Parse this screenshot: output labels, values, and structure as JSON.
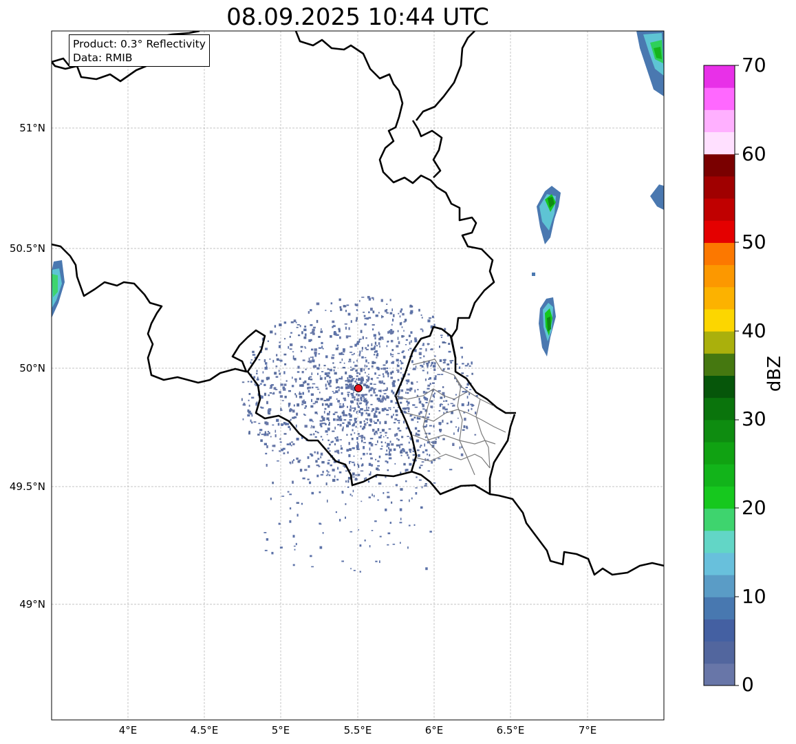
{
  "title": "08.09.2025 10:44 UTC",
  "info": {
    "product": "Product: 0.3° Reflectivity",
    "source": "Data: RMIB"
  },
  "map": {
    "lon_range": [
      3.5,
      7.5
    ],
    "lat_range": [
      48.55,
      51.4
    ],
    "lon_ticks": [
      "4°E",
      "4.5°E",
      "5°E",
      "5.5°E",
      "6°E",
      "6.5°E",
      "7°E"
    ],
    "lat_ticks": [
      "51°N",
      "50.5°N",
      "50°N",
      "49.5°N",
      "49°N"
    ],
    "gridlines": true,
    "radar_site": {
      "lon": 5.5,
      "lat": 49.91,
      "color": "#e8141c"
    }
  },
  "colorbar": {
    "label": "dBZ",
    "ticks": [
      "0",
      "10",
      "20",
      "30",
      "40",
      "50",
      "60",
      "70"
    ],
    "range": [
      0,
      70
    ],
    "colors": [
      "#6876a8",
      "#52669e",
      "#4460a2",
      "#4878b0",
      "#5a9cc6",
      "#68c0dc",
      "#62d6c6",
      "#3ed46e",
      "#16c81e",
      "#12b41a",
      "#10a212",
      "#0e8c10",
      "#0a740c",
      "#06560a",
      "#457810",
      "#aab00c",
      "#fcd600",
      "#fcb200",
      "#fc9800",
      "#fc7800",
      "#e40000",
      "#c00000",
      "#a00000",
      "#7a0000",
      "#ffe0ff",
      "#ffb0ff",
      "#ff68ff",
      "#e830e8"
    ]
  }
}
